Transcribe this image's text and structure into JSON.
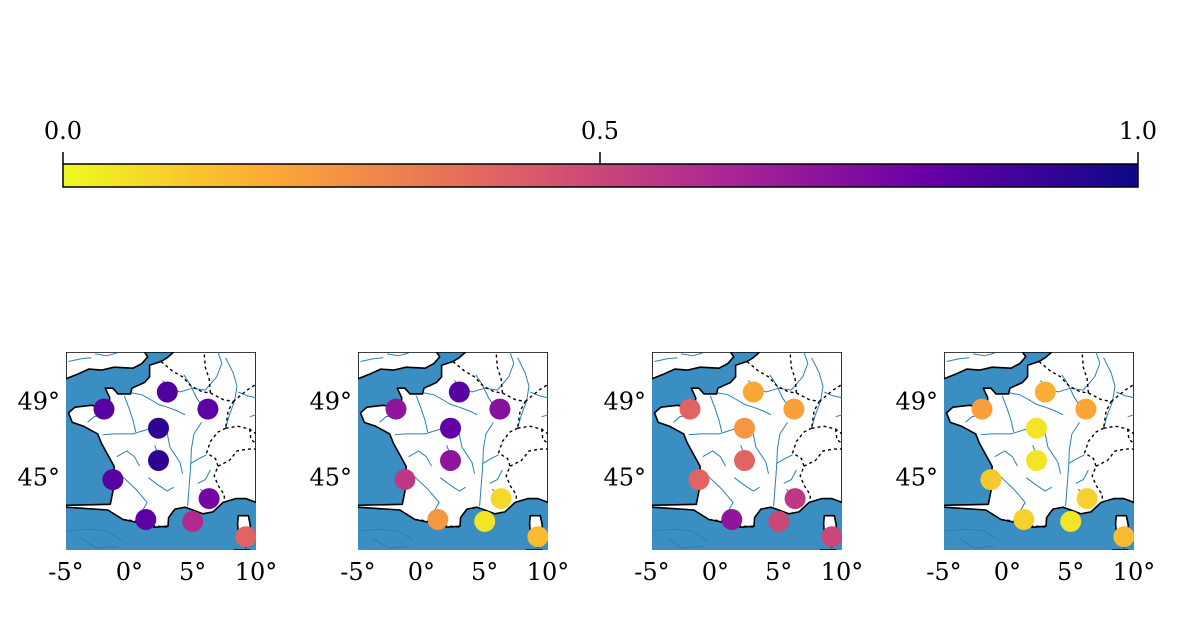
{
  "colorbar": {
    "ticks": [
      "0.0",
      "0.5",
      "1.0"
    ],
    "tick_values": [
      0.0,
      0.5,
      1.0
    ],
    "range": [
      0,
      1
    ],
    "colormap": "plasma_r",
    "colors": [
      "#f0f921",
      "#fca636",
      "#e16462",
      "#b12a90",
      "#6a00a8",
      "#0d0887"
    ]
  },
  "map_style": {
    "sea_color": "#3a8ec2",
    "land_color": "#ffffff",
    "river_color": "#2a7fb8",
    "coast_color": "#000000"
  },
  "axes": {
    "x_ticks": [
      "-5°",
      "0°",
      "5°",
      "10°"
    ],
    "x_values": [
      -5,
      0,
      5,
      10
    ],
    "y_ticks": [
      "49°",
      "45°"
    ],
    "y_values": [
      49,
      45
    ],
    "lon_range": [
      -5,
      10
    ],
    "lat_range": [
      41.2,
      51.6
    ]
  },
  "stations": [
    {
      "lon": -2.0,
      "lat": 48.6
    },
    {
      "lon": 3.0,
      "lat": 49.5
    },
    {
      "lon": 6.2,
      "lat": 48.6
    },
    {
      "lon": 2.3,
      "lat": 47.6
    },
    {
      "lon": 2.3,
      "lat": 45.9
    },
    {
      "lon": -1.3,
      "lat": 44.9
    },
    {
      "lon": 1.3,
      "lat": 42.8
    },
    {
      "lon": 6.3,
      "lat": 43.9
    },
    {
      "lon": 5.0,
      "lat": 42.7
    },
    {
      "lon": 9.2,
      "lat": 41.9
    }
  ],
  "chart_data": [
    {
      "type": "scatter",
      "values": [
        0.84,
        0.86,
        0.83,
        0.93,
        0.93,
        0.84,
        0.83,
        0.77,
        0.6,
        0.4
      ]
    },
    {
      "type": "scatter",
      "values": [
        0.7,
        0.84,
        0.72,
        0.82,
        0.7,
        0.55,
        0.25,
        0.08,
        0.05,
        0.15
      ]
    },
    {
      "type": "scatter",
      "values": [
        0.4,
        0.2,
        0.22,
        0.25,
        0.4,
        0.4,
        0.7,
        0.55,
        0.5,
        0.5
      ]
    },
    {
      "type": "scatter",
      "values": [
        0.22,
        0.18,
        0.2,
        0.05,
        0.05,
        0.12,
        0.1,
        0.1,
        0.05,
        0.15
      ]
    }
  ]
}
